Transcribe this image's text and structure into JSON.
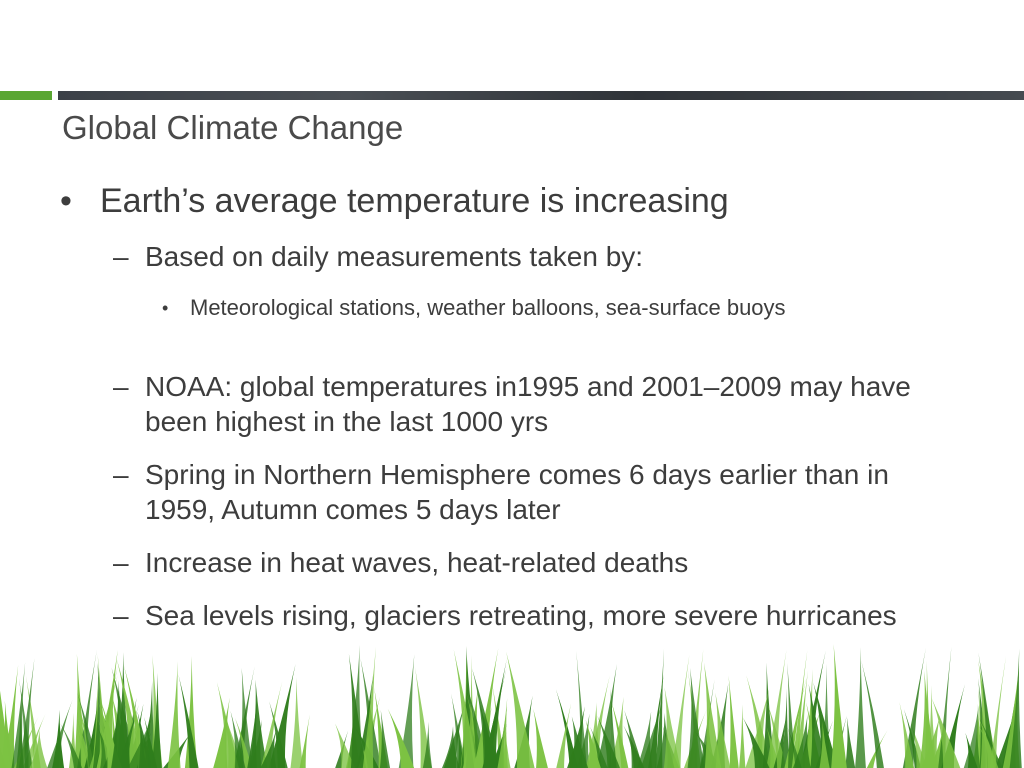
{
  "slide": {
    "title": "Global Climate Change",
    "bullets": {
      "main": "Earth’s average temperature is increasing",
      "sub1": "Based on daily measurements taken by:",
      "sub1_detail": "Meteorological stations, weather balloons, sea-surface buoys",
      "sub2": "NOAA: global temperatures in1995 and 2001–2009 may have been highest in the last 1000 yrs",
      "sub3": "Spring in Northern Hemisphere comes 6 days earlier than in 1959, Autumn comes 5 days later",
      "sub4": "Increase in heat waves, heat-related deaths",
      "sub5": "Sea levels rising, glaciers retreating, more severe hurricanes"
    },
    "markers": {
      "level1": "•",
      "level2": "–",
      "level3": "•"
    }
  },
  "colors": {
    "accent_green": "#5aa632",
    "header_bar": "#3b4047",
    "grass_dark": "#2f7d1c",
    "grass_light": "#7cc242"
  }
}
